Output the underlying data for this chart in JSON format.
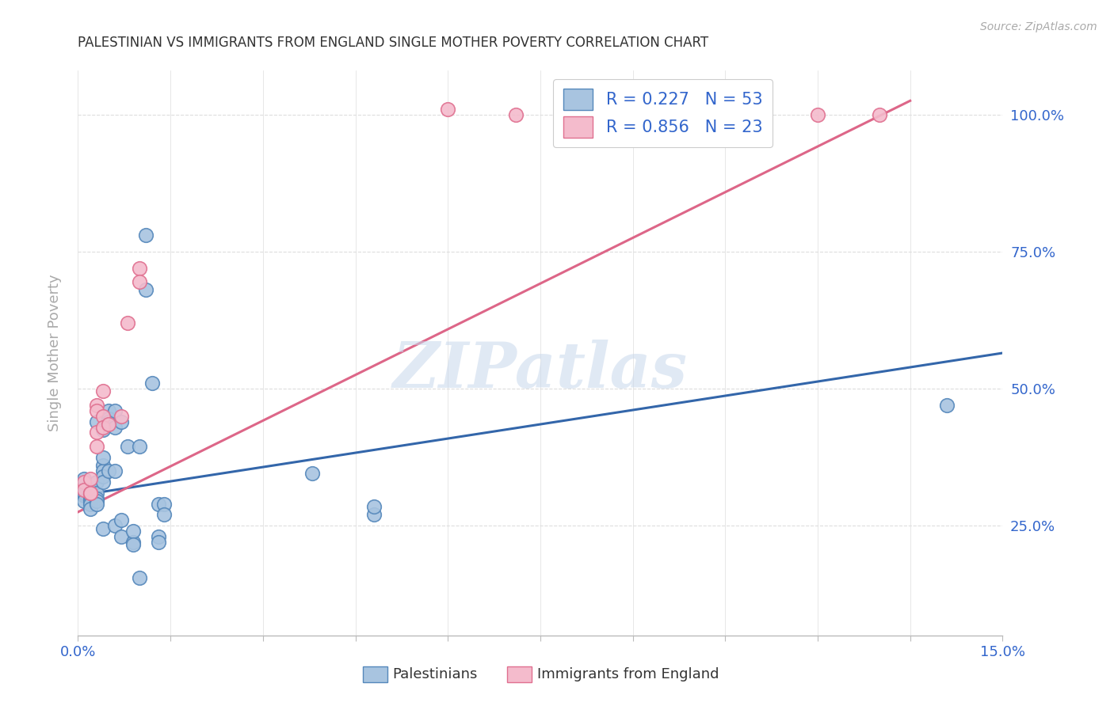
{
  "title": "PALESTINIAN VS IMMIGRANTS FROM ENGLAND SINGLE MOTHER POVERTY CORRELATION CHART",
  "source": "Source: ZipAtlas.com",
  "ylabel": "Single Mother Poverty",
  "legend_r_n": [
    {
      "R": "0.227",
      "N": "53"
    },
    {
      "R": "0.856",
      "N": "23"
    }
  ],
  "blue_scatter_color": "#A8C4E0",
  "blue_edge_color": "#5588BB",
  "pink_scatter_color": "#F4BBCC",
  "pink_edge_color": "#E07090",
  "blue_line_color": "#3366AA",
  "pink_line_color": "#DD6688",
  "text_color": "#3366CC",
  "title_color": "#333333",
  "grid_color": "#DDDDDD",
  "watermark_color": "#C8D8EC",
  "xlim": [
    0.0,
    0.15
  ],
  "ylim": [
    0.05,
    1.08
  ],
  "x_tick_positions": [
    0.0,
    0.015,
    0.03,
    0.045,
    0.06,
    0.075,
    0.09,
    0.105,
    0.12,
    0.135,
    0.15
  ],
  "y_tick_positions": [
    0.25,
    0.5,
    0.75,
    1.0
  ],
  "y_tick_labels": [
    "25.0%",
    "50.0%",
    "75.0%",
    "100.0%"
  ],
  "blue_scatter": [
    [
      0.001,
      0.335
    ],
    [
      0.001,
      0.305
    ],
    [
      0.001,
      0.31
    ],
    [
      0.001,
      0.295
    ],
    [
      0.002,
      0.315
    ],
    [
      0.002,
      0.3
    ],
    [
      0.002,
      0.31
    ],
    [
      0.002,
      0.295
    ],
    [
      0.002,
      0.305
    ],
    [
      0.002,
      0.29
    ],
    [
      0.002,
      0.28
    ],
    [
      0.003,
      0.33
    ],
    [
      0.003,
      0.31
    ],
    [
      0.003,
      0.3
    ],
    [
      0.003,
      0.295
    ],
    [
      0.003,
      0.44
    ],
    [
      0.003,
      0.29
    ],
    [
      0.004,
      0.36
    ],
    [
      0.004,
      0.35
    ],
    [
      0.004,
      0.375
    ],
    [
      0.004,
      0.34
    ],
    [
      0.004,
      0.425
    ],
    [
      0.004,
      0.33
    ],
    [
      0.004,
      0.245
    ],
    [
      0.005,
      0.35
    ],
    [
      0.005,
      0.46
    ],
    [
      0.005,
      0.445
    ],
    [
      0.005,
      0.44
    ],
    [
      0.006,
      0.35
    ],
    [
      0.006,
      0.46
    ],
    [
      0.006,
      0.43
    ],
    [
      0.006,
      0.25
    ],
    [
      0.007,
      0.23
    ],
    [
      0.007,
      0.26
    ],
    [
      0.007,
      0.44
    ],
    [
      0.008,
      0.395
    ],
    [
      0.009,
      0.22
    ],
    [
      0.009,
      0.24
    ],
    [
      0.009,
      0.215
    ],
    [
      0.01,
      0.395
    ],
    [
      0.01,
      0.155
    ],
    [
      0.011,
      0.78
    ],
    [
      0.011,
      0.68
    ],
    [
      0.012,
      0.51
    ],
    [
      0.013,
      0.29
    ],
    [
      0.013,
      0.23
    ],
    [
      0.013,
      0.22
    ],
    [
      0.014,
      0.29
    ],
    [
      0.014,
      0.27
    ],
    [
      0.038,
      0.345
    ],
    [
      0.048,
      0.27
    ],
    [
      0.048,
      0.285
    ],
    [
      0.141,
      0.47
    ]
  ],
  "pink_scatter": [
    [
      0.001,
      0.33
    ],
    [
      0.001,
      0.315
    ],
    [
      0.002,
      0.31
    ],
    [
      0.002,
      0.31
    ],
    [
      0.002,
      0.335
    ],
    [
      0.003,
      0.42
    ],
    [
      0.003,
      0.395
    ],
    [
      0.003,
      0.47
    ],
    [
      0.003,
      0.46
    ],
    [
      0.004,
      0.495
    ],
    [
      0.004,
      0.45
    ],
    [
      0.004,
      0.43
    ],
    [
      0.005,
      0.435
    ],
    [
      0.007,
      0.45
    ],
    [
      0.008,
      0.62
    ],
    [
      0.01,
      0.72
    ],
    [
      0.01,
      0.695
    ],
    [
      0.071,
      1.0
    ],
    [
      0.08,
      1.0
    ],
    [
      0.091,
      1.0
    ],
    [
      0.12,
      1.0
    ],
    [
      0.06,
      1.01
    ],
    [
      0.13,
      1.0
    ]
  ],
  "blue_line_x": [
    0.0,
    0.15
  ],
  "blue_line_y": [
    0.305,
    0.565
  ],
  "pink_line_x": [
    0.0,
    0.135
  ],
  "pink_line_y": [
    0.275,
    1.025
  ],
  "bottom_legend_labels": [
    "Palestinians",
    "Immigrants from England"
  ]
}
